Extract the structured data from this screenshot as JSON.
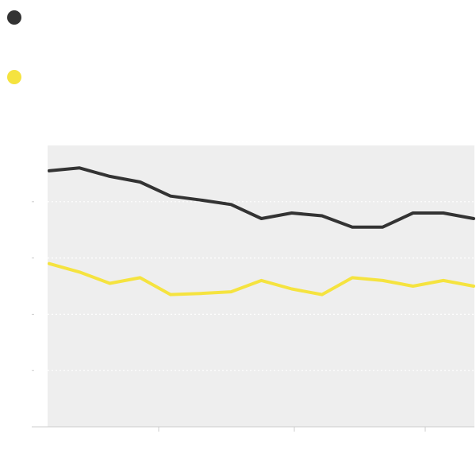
{
  "chart_data": {
    "type": "line",
    "title": "",
    "xlabel": "",
    "ylabel": "",
    "x": [
      1,
      2,
      3,
      4,
      5,
      6,
      7,
      8,
      9,
      10,
      11,
      12,
      13,
      14,
      15
    ],
    "series": [
      {
        "color": "#333333",
        "values": [
          85.5,
          86.0,
          84.5,
          83.5,
          81.0,
          80.3,
          79.5,
          77.0,
          78.0,
          77.5,
          75.5,
          75.5,
          78.0,
          78.0,
          77.0
        ]
      },
      {
        "color": "#f5e33f",
        "values": [
          69.0,
          67.5,
          65.5,
          66.5,
          63.5,
          63.7,
          64.0,
          66.0,
          64.5,
          63.5,
          66.5,
          66.0,
          65.0,
          66.0,
          65.0
        ]
      }
    ],
    "ylim": [
      40,
      90
    ],
    "y_gridlines": [
      50,
      60,
      70,
      80
    ],
    "grid": true,
    "legend": "top-left",
    "plot_background": "#eeeeee",
    "gridline_color": "#ffffff",
    "axis_color": "#cccccc"
  }
}
